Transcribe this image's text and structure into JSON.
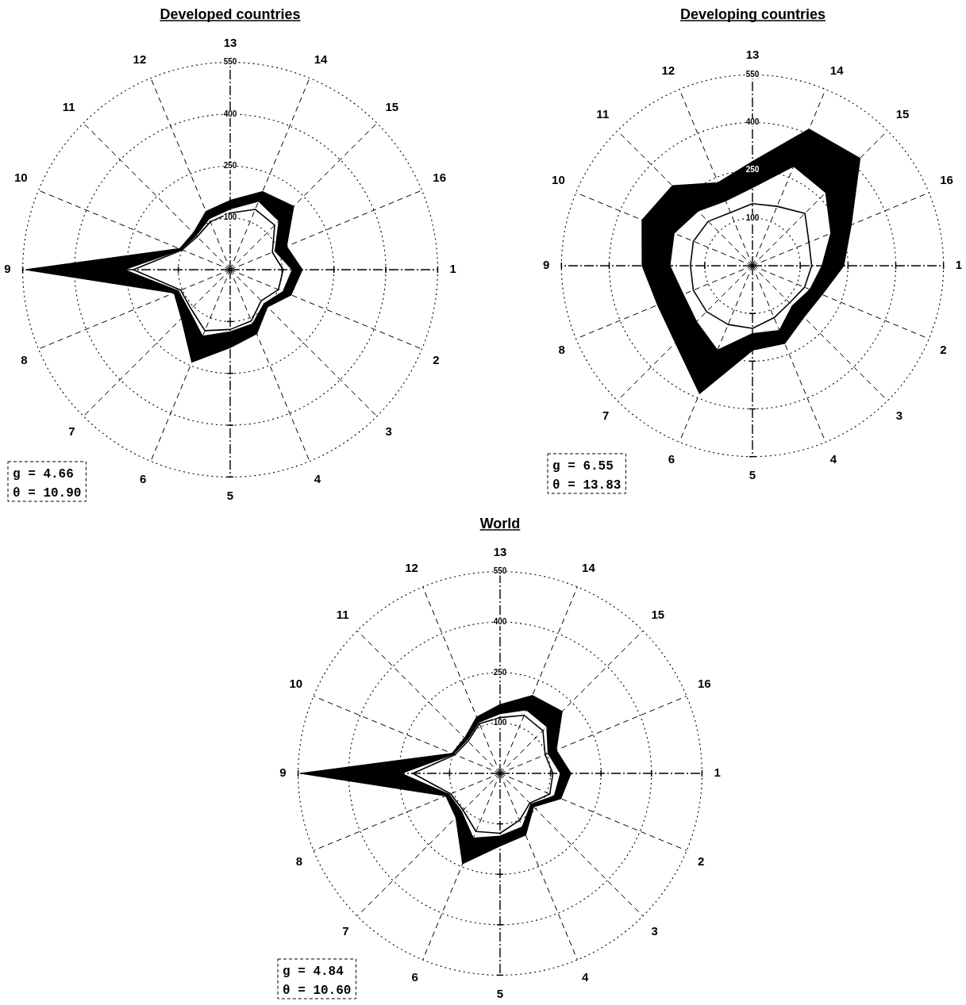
{
  "chart_data": [
    {
      "type": "radar",
      "title": "Developed countries",
      "categories": [
        "13",
        "14",
        "15",
        "16",
        "1",
        "2",
        "3",
        "4",
        "5",
        "6",
        "7",
        "8",
        "9",
        "10",
        "11",
        "12"
      ],
      "series": [
        {
          "color": "#000000",
          "values": [
            114,
            139,
            132,
            82,
            103,
            101,
            77,
            110,
            123,
            141,
            110,
            105,
            230,
            100,
            85,
            100
          ]
        },
        {
          "color": "#000000",
          "values": [
            126,
            165,
            150,
            91,
            130,
            116,
            89,
            120,
            130,
            159,
            118,
            112,
            258,
            103,
            90,
            110
          ]
        },
        {
          "type": "area",
          "color": "#000000",
          "values": [
            150,
            194,
            209,
            126,
            158,
            140,
            102,
            150,
            175,
            239,
            149,
            125,
            540,
            108,
            100,
            132
          ]
        }
      ],
      "ylim": [
        -50,
        550
      ],
      "yticks": [
        100,
        250,
        400,
        550
      ],
      "grid": true,
      "annotations": [
        "g = 4.66",
        "θ = 10.90"
      ]
    },
    {
      "type": "radar",
      "title": "Developing countries",
      "categories": [
        "13",
        "14",
        "15",
        "16",
        "1",
        "2",
        "3",
        "4",
        "5",
        "6",
        "7",
        "8",
        "9",
        "10",
        "11",
        "12"
      ],
      "series": [
        {
          "color": "#000000",
          "values": [
            145,
            152,
            183,
            142,
            136,
            127,
            115,
            127,
            147,
            150,
            154,
            151,
            145,
            151,
            147,
            131
          ]
        },
        {
          "color": "#000000",
          "values": [
            196,
            289,
            276,
            217,
            169,
            146,
            128,
            171,
            164,
            238,
            199,
            186,
            210,
            217,
            193,
            171
          ]
        },
        {
          "type": "area",
          "color": "#000000",
          "values": [
            277,
            414,
            427,
            285,
            236,
            186,
            178,
            214,
            215,
            384,
            292,
            272,
            296,
            325,
            305,
            232
          ]
        }
      ],
      "ylim": [
        -50,
        550
      ],
      "yticks": [
        100,
        250,
        400,
        550
      ],
      "grid": true,
      "annotations": [
        "g = 6.55",
        "θ = 13.83"
      ]
    },
    {
      "type": "radar",
      "title": "World",
      "categories": [
        "13",
        "14",
        "15",
        "16",
        "1",
        "2",
        "3",
        "4",
        "5",
        "6",
        "7",
        "8",
        "9",
        "10",
        "11",
        "12"
      ],
      "series": [
        {
          "color": "#000000",
          "values": [
            116,
            137,
            130,
            95,
            107,
            110,
            75,
            101,
            128,
            137,
            105,
            109,
            209,
            95,
            85,
            110
          ]
        },
        {
          "color": "#000000",
          "values": [
            128,
            155,
            147,
            105,
            130,
            125,
            80,
            123,
            137,
            159,
            112,
            114,
            245,
            100,
            90,
            115
          ]
        },
        {
          "type": "area",
          "color": "#000000",
          "values": [
            154,
            200,
            210,
            130,
            160,
            145,
            90,
            148,
            165,
            240,
            135,
            124,
            540,
            104,
            98,
            131
          ]
        }
      ],
      "ylim": [
        -50,
        550
      ],
      "yticks": [
        100,
        250,
        400,
        550
      ],
      "grid": true,
      "annotations": [
        "g = 4.84",
        "θ = 10.60"
      ]
    }
  ]
}
